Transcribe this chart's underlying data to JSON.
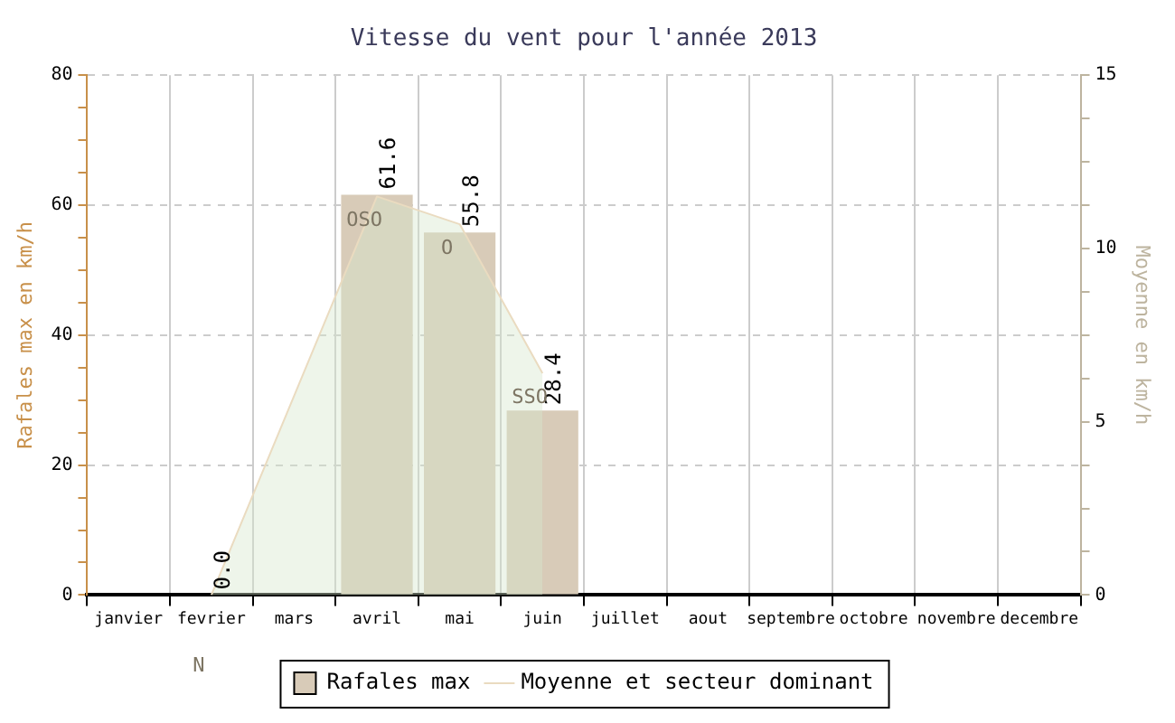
{
  "chart_data": {
    "type": "bar",
    "title": "Vitesse du vent pour l'année 2013",
    "ylabel": "Rafales max en km/h",
    "y2label": "Moyenne en km/h",
    "categories": [
      "janvier",
      "fevrier",
      "mars",
      "avril",
      "mai",
      "juin",
      "juillet",
      "aout",
      "septembre",
      "octobre",
      "novembre",
      "decembre"
    ],
    "series": [
      {
        "name": "Rafales max",
        "color": "#d8cbb8",
        "values": [
          null,
          0,
          null,
          61.6,
          55.8,
          28.4,
          null,
          null,
          null,
          null,
          null,
          null
        ],
        "value_labels": [
          null,
          "0.0",
          null,
          "61.6",
          "55.8",
          "28.4",
          null,
          null,
          null,
          null,
          null,
          null
        ]
      },
      {
        "name": "Moyenne et secteur dominant",
        "type": "area",
        "axis": "y2",
        "color": "#eadbc0",
        "values": [
          null,
          0,
          null,
          11.5,
          10.7,
          6.4,
          null,
          null,
          null,
          null,
          null,
          null
        ],
        "value_labels": [
          null,
          "N",
          null,
          "OSO",
          "O",
          "SSO",
          null,
          null,
          null,
          null,
          null,
          null
        ]
      }
    ],
    "ylim": [
      0,
      80
    ],
    "yticks": [
      0,
      {
        "value": 5,
        "label": null
      },
      {
        "value": 10,
        "label": null
      },
      {
        "value": 15,
        "label": null
      },
      20,
      {
        "value": 25,
        "label": null
      },
      {
        "value": 30,
        "label": null
      },
      {
        "value": 35,
        "label": null
      },
      40,
      {
        "value": 45,
        "label": null
      },
      {
        "value": 50,
        "label": null
      },
      {
        "value": 55,
        "label": null
      },
      60,
      {
        "value": 65,
        "label": null
      },
      {
        "value": 70,
        "label": null
      },
      {
        "value": 75,
        "label": null
      },
      80
    ],
    "y2lim": [
      0,
      15
    ],
    "y2ticks": [
      0,
      {
        "value": 1.25,
        "label": null
      },
      {
        "value": 2.5,
        "label": null
      },
      {
        "value": 3.75,
        "label": null
      },
      5,
      {
        "value": 6.25,
        "label": null
      },
      {
        "value": 7.5,
        "label": null
      },
      {
        "value": 8.75,
        "label": null
      },
      10,
      {
        "value": 11.25,
        "label": null
      },
      {
        "value": 12.5,
        "label": null
      },
      {
        "value": 13.75,
        "label": null
      },
      15
    ],
    "grid": true,
    "legend": "bottom",
    "line_style": "solid",
    "marker": "none"
  }
}
